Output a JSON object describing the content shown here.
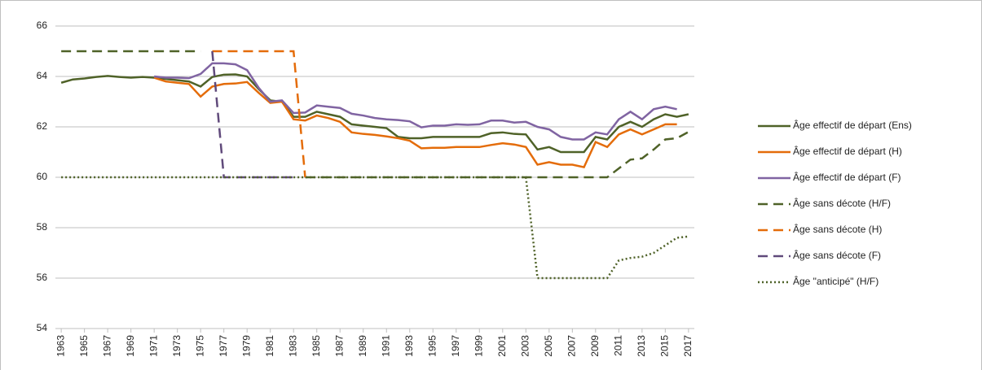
{
  "chart_data": {
    "type": "line",
    "x": [
      1963,
      1964,
      1965,
      1966,
      1967,
      1968,
      1969,
      1970,
      1971,
      1972,
      1973,
      1974,
      1975,
      1976,
      1977,
      1978,
      1979,
      1980,
      1981,
      1982,
      1983,
      1984,
      1985,
      1986,
      1987,
      1988,
      1989,
      1990,
      1991,
      1992,
      1993,
      1994,
      1995,
      1996,
      1997,
      1998,
      1999,
      2000,
      2001,
      2002,
      2003,
      2004,
      2005,
      2006,
      2007,
      2008,
      2009,
      2010,
      2011,
      2012,
      2013,
      2014,
      2015,
      2016,
      2017
    ],
    "xlim": [
      1962.5,
      2017.5
    ],
    "xticks": [
      1963,
      1965,
      1967,
      1969,
      1971,
      1973,
      1975,
      1977,
      1979,
      1981,
      1983,
      1985,
      1987,
      1989,
      1991,
      1993,
      1995,
      1997,
      1999,
      2001,
      2003,
      2005,
      2007,
      2009,
      2011,
      2013,
      2015,
      2017
    ],
    "ylim": [
      54,
      66
    ],
    "yticks": [
      54,
      56,
      58,
      60,
      62,
      64,
      66
    ],
    "grid": true,
    "legend": "right",
    "series": [
      {
        "name": "Âge effectif de départ (Ens)",
        "color": "#4f6228",
        "style": "solid",
        "values": [
          63.75,
          63.88,
          63.92,
          63.98,
          64.02,
          63.98,
          63.95,
          63.98,
          63.95,
          63.9,
          63.85,
          63.8,
          63.6,
          63.98,
          64.07,
          64.08,
          64.0,
          63.5,
          63.05,
          63.0,
          62.4,
          62.4,
          62.6,
          62.5,
          62.4,
          62.1,
          62.05,
          62.0,
          61.95,
          61.6,
          61.55,
          61.55,
          61.6,
          61.6,
          61.6,
          61.6,
          61.6,
          61.75,
          61.78,
          61.72,
          61.7,
          61.1,
          61.2,
          61.0,
          61.0,
          61.0,
          61.6,
          61.5,
          62.0,
          62.2,
          62.0,
          62.3,
          62.5,
          62.4,
          62.5
        ]
      },
      {
        "name": "Âge effectif de départ (H)",
        "color": "#e46c0a",
        "style": "solid",
        "values": [
          null,
          null,
          null,
          null,
          null,
          null,
          null,
          null,
          63.95,
          63.8,
          63.75,
          63.7,
          63.2,
          63.6,
          63.7,
          63.72,
          63.78,
          63.35,
          62.95,
          63.0,
          62.3,
          62.25,
          62.45,
          62.35,
          62.2,
          61.78,
          61.72,
          61.68,
          61.62,
          61.55,
          61.45,
          61.15,
          61.17,
          61.17,
          61.2,
          61.2,
          61.2,
          61.28,
          61.35,
          61.3,
          61.2,
          60.5,
          60.6,
          60.5,
          60.5,
          60.4,
          61.4,
          61.2,
          61.7,
          61.9,
          61.7,
          61.9,
          62.1,
          62.1,
          null
        ]
      },
      {
        "name": "Âge effectif de départ (F)",
        "color": "#8064a2",
        "style": "solid",
        "values": [
          null,
          null,
          null,
          null,
          null,
          null,
          null,
          null,
          64.0,
          63.95,
          63.95,
          63.93,
          64.1,
          64.52,
          64.52,
          64.48,
          64.25,
          63.55,
          63.0,
          63.05,
          62.55,
          62.57,
          62.85,
          62.8,
          62.75,
          62.52,
          62.45,
          62.35,
          62.3,
          62.27,
          62.22,
          61.98,
          62.05,
          62.05,
          62.1,
          62.08,
          62.1,
          62.25,
          62.25,
          62.17,
          62.2,
          62.0,
          61.9,
          61.6,
          61.5,
          61.5,
          61.78,
          61.7,
          62.3,
          62.6,
          62.3,
          62.7,
          62.8,
          62.7,
          null
        ]
      },
      {
        "name": "Âge sans décote (H/F)",
        "color": "#4f6228",
        "style": "dashed",
        "values": [
          65,
          65,
          65,
          65,
          65,
          65,
          65,
          65,
          65,
          65,
          65,
          65,
          65,
          null,
          null,
          null,
          null,
          null,
          null,
          null,
          null,
          60,
          60,
          60,
          60,
          60,
          60,
          60,
          60,
          60,
          60,
          60,
          60,
          60,
          60,
          60,
          60,
          60,
          60,
          60,
          60,
          60,
          60,
          60,
          60,
          60,
          60,
          60,
          60.35,
          60.7,
          60.75,
          61.1,
          61.5,
          61.55,
          61.8
        ]
      },
      {
        "name": "Âge sans décote (H)",
        "color": "#e46c0a",
        "style": "dashed",
        "values": [
          null,
          null,
          null,
          null,
          null,
          null,
          null,
          null,
          null,
          null,
          null,
          null,
          null,
          65,
          65,
          65,
          65,
          65,
          65,
          65,
          65,
          60,
          null,
          null,
          null,
          null,
          null,
          null,
          null,
          null,
          null,
          null,
          null,
          null,
          null,
          null,
          null,
          null,
          null,
          null,
          null,
          null,
          null,
          null,
          null,
          null,
          null,
          null,
          null,
          null,
          null,
          null,
          null,
          null,
          null
        ]
      },
      {
        "name": "Âge sans décote (F)",
        "color": "#604a7b",
        "style": "dashed",
        "values": [
          null,
          null,
          null,
          null,
          null,
          null,
          null,
          null,
          null,
          null,
          null,
          null,
          null,
          65,
          60,
          60,
          60,
          60,
          60,
          60,
          60,
          null,
          null,
          null,
          null,
          null,
          null,
          null,
          null,
          null,
          null,
          null,
          null,
          null,
          null,
          null,
          null,
          null,
          null,
          null,
          null,
          null,
          null,
          null,
          null,
          null,
          null,
          null,
          null,
          null,
          null,
          null,
          null,
          null,
          null
        ]
      },
      {
        "name": "Âge \"anticipé\" (H/F)",
        "color": "#4f6228",
        "style": "dotted",
        "values": [
          60,
          60,
          60,
          60,
          60,
          60,
          60,
          60,
          60,
          60,
          60,
          60,
          60,
          60,
          60,
          60,
          60,
          60,
          60,
          60,
          60,
          60,
          60,
          60,
          60,
          60,
          60,
          60,
          60,
          60,
          60,
          60,
          60,
          60,
          60,
          60,
          60,
          60,
          60,
          60,
          60,
          56,
          56,
          56,
          56,
          56,
          56,
          56,
          56.7,
          56.8,
          56.85,
          57.0,
          57.3,
          57.6,
          57.65
        ]
      }
    ]
  }
}
